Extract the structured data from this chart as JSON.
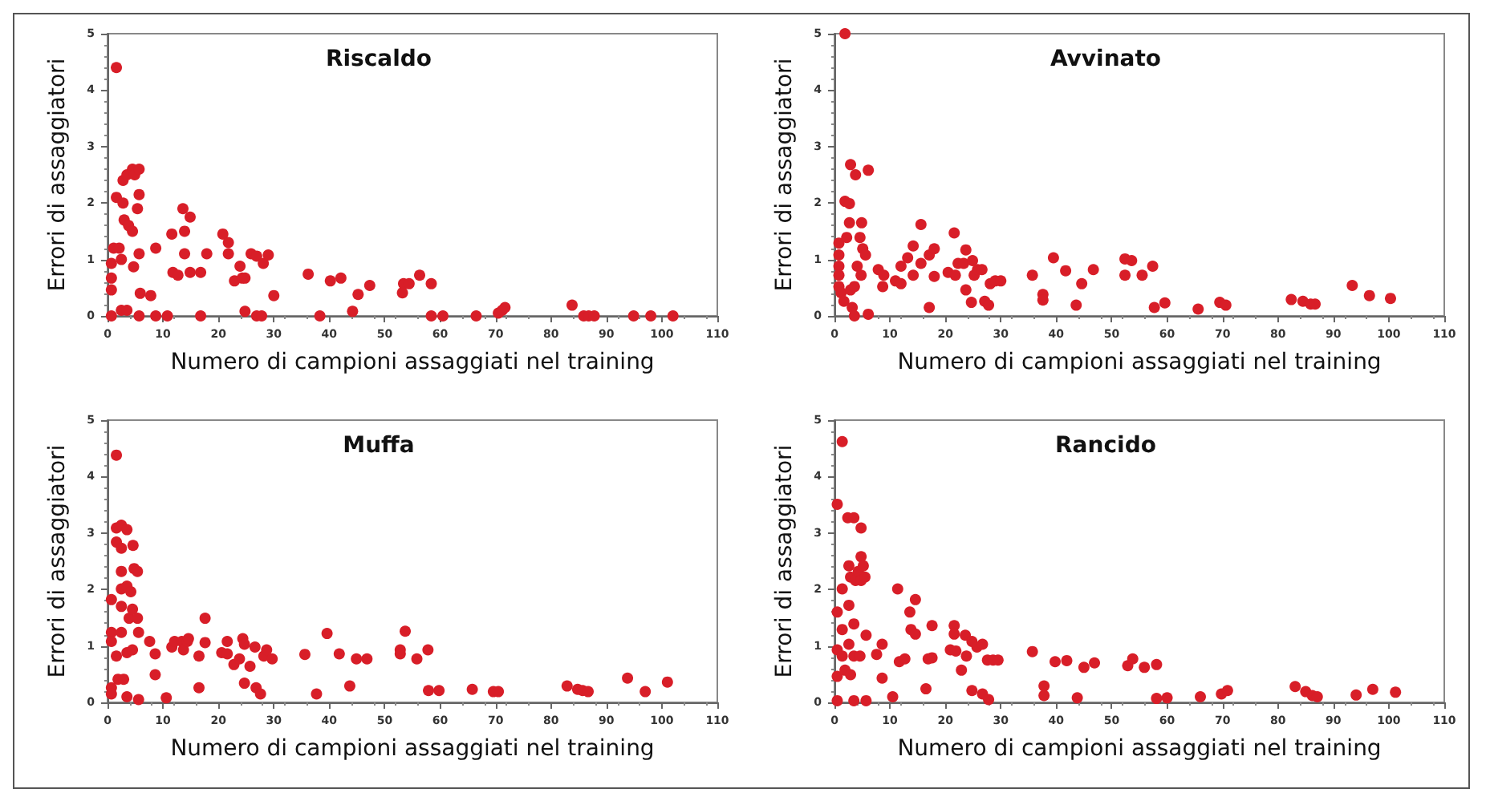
{
  "chart_data": [
    {
      "type": "scatter",
      "title": "Riscaldo",
      "xlabel": "Numero di campioni assaggiati nel training",
      "ylabel": "Errori di assaggiatori",
      "color": "#d81e28",
      "marker": "circle",
      "xlim": [
        0,
        110
      ],
      "ylim": [
        0,
        5
      ],
      "xticks": [
        0,
        10,
        20,
        30,
        40,
        50,
        60,
        70,
        80,
        90,
        100,
        110
      ],
      "yticks": [
        0,
        1,
        2,
        3,
        4,
        5
      ],
      "x": [
        1.6,
        0.7,
        0.7,
        0.7,
        0.7,
        1.1,
        1.6,
        2.1,
        2.5,
        2.5,
        2.8,
        2.8,
        3,
        3.5,
        3.5,
        3.8,
        4.5,
        4.5,
        4.7,
        4.9,
        5.4,
        5.7,
        5.7,
        5.7,
        5.7,
        5.9,
        7.8,
        8.7,
        8.7,
        10.8,
        11.6,
        11.8,
        12.7,
        13.6,
        13.9,
        13.9,
        14.9,
        14.9,
        16.8,
        16.8,
        17.9,
        20.8,
        21.8,
        21.8,
        22.9,
        23.9,
        24.3,
        24.8,
        24.8,
        25.9,
        26.9,
        26.9,
        27.8,
        28.1,
        29,
        30,
        36.2,
        38.3,
        40.2,
        42.1,
        44.2,
        45.2,
        47.3,
        53.2,
        53.4,
        54.4,
        56.3,
        58.4,
        58.4,
        60.5,
        66.5,
        70.5,
        71.2,
        71.7,
        83.8,
        85.9,
        86.8,
        87.8,
        94.9,
        98,
        102
      ],
      "values": [
        4.4,
        0,
        0.93,
        0.46,
        0.67,
        1.2,
        2.1,
        1.2,
        1,
        0.1,
        2.4,
        2,
        1.7,
        2.5,
        0.1,
        1.6,
        2.6,
        1.5,
        0.87,
        2.5,
        1.9,
        2.6,
        2.15,
        1.1,
        0,
        0.4,
        0.36,
        1.2,
        0,
        0,
        1.45,
        0.77,
        0.72,
        1.9,
        1.5,
        1.1,
        1.75,
        0.77,
        0.77,
        0,
        1.1,
        1.45,
        1.3,
        1.1,
        0.62,
        0.88,
        0.67,
        0.67,
        0.08,
        1.1,
        1.06,
        0,
        0,
        0.93,
        1.08,
        0.36,
        0.74,
        0,
        0.62,
        0.67,
        0.08,
        0.38,
        0.54,
        0.41,
        0.57,
        0.57,
        0.72,
        0.57,
        0,
        0,
        0,
        0.05,
        0.1,
        0.15,
        0.19,
        0,
        0,
        0,
        0,
        0,
        0
      ]
    },
    {
      "type": "scatter",
      "title": "Avvinato",
      "xlabel": "Numero di campioni assaggiati nel training",
      "ylabel": "Errori di assaggiatori",
      "color": "#d81e28",
      "marker": "circle",
      "xlim": [
        0,
        110
      ],
      "ylim": [
        0,
        5
      ],
      "xticks": [
        0,
        10,
        20,
        30,
        40,
        50,
        60,
        70,
        80,
        90,
        100,
        110
      ],
      "yticks": [
        0,
        1,
        2,
        3,
        4,
        5
      ],
      "x": [
        1.9,
        1.9,
        2.7,
        2.9,
        3.8,
        0.8,
        0.8,
        0.8,
        0.8,
        0.8,
        1.2,
        1.7,
        2.2,
        2.7,
        2.9,
        3.2,
        3.6,
        3.6,
        4.1,
        4.6,
        4.8,
        4.9,
        5.1,
        5.6,
        6.1,
        6.1,
        7.9,
        8.7,
        8.9,
        11,
        12,
        12,
        13.2,
        14.2,
        14.2,
        15.6,
        15.6,
        17.1,
        17.1,
        18,
        18,
        20.5,
        21.6,
        21.8,
        22.3,
        23.3,
        23.7,
        23.7,
        24.7,
        24.9,
        25.2,
        25.8,
        26.6,
        27.1,
        27.8,
        28.1,
        29,
        30,
        35.7,
        37.6,
        37.6,
        39.5,
        41.7,
        43.6,
        44.6,
        46.7,
        52.4,
        52.4,
        53.6,
        55.5,
        57.4,
        57.7,
        59.6,
        65.6,
        69.5,
        70.6,
        82.4,
        84.5,
        85.9,
        86.7,
        93.4,
        96.5,
        100.3
      ],
      "values": [
        5,
        2.03,
        1.99,
        2.68,
        2.5,
        1.29,
        1.08,
        0.88,
        0.72,
        0.52,
        0.41,
        0.26,
        1.39,
        1.65,
        0.46,
        0.15,
        0,
        0.52,
        0.88,
        1.39,
        0.72,
        1.65,
        1.19,
        1.08,
        2.58,
        0.03,
        0.82,
        0.52,
        0.72,
        0.62,
        0.57,
        0.88,
        1.03,
        1.24,
        0.72,
        1.62,
        0.93,
        0.15,
        1.08,
        1.19,
        0.7,
        0.77,
        1.47,
        0.72,
        0.93,
        0.93,
        1.17,
        0.46,
        0.24,
        0.98,
        0.72,
        0.82,
        0.82,
        0.26,
        0.19,
        0.57,
        0.62,
        0.62,
        0.72,
        0.38,
        0.28,
        1.03,
        0.8,
        0.19,
        0.57,
        0.82,
        1.01,
        0.72,
        0.98,
        0.72,
        0.88,
        0.15,
        0.23,
        0.12,
        0.24,
        0.19,
        0.29,
        0.26,
        0.21,
        0.21,
        0.54,
        0.36,
        0.31
      ]
    },
    {
      "type": "scatter",
      "title": "Muffa",
      "xlabel": "Numero di campioni assaggiati nel training",
      "ylabel": "Errori di assaggiatori",
      "color": "#d81e28",
      "marker": "circle",
      "xlim": [
        0,
        110
      ],
      "ylim": [
        0,
        5
      ],
      "xticks": [
        0,
        10,
        20,
        30,
        40,
        50,
        60,
        70,
        80,
        90,
        100,
        110
      ],
      "yticks": [
        0,
        1,
        2,
        3,
        4,
        5
      ],
      "x": [
        1.6,
        1.6,
        1.6,
        0.7,
        0.7,
        0.7,
        0.7,
        0.7,
        1.6,
        1.9,
        2.5,
        2.5,
        2.5,
        2.5,
        2.5,
        2.5,
        2.9,
        3.5,
        3.5,
        3.5,
        3.5,
        3.9,
        4.2,
        4.5,
        4.5,
        4.6,
        4.8,
        5.4,
        5.4,
        5.6,
        5.6,
        7.6,
        8.6,
        8.6,
        10.6,
        11.6,
        12.1,
        13.4,
        13.7,
        14.4,
        14.6,
        16.5,
        16.5,
        17.6,
        17.6,
        20.6,
        21.6,
        21.6,
        22.8,
        23.8,
        24.4,
        24.7,
        24.7,
        25.7,
        26.6,
        26.8,
        27.6,
        28.2,
        28.7,
        29.7,
        35.6,
        37.7,
        39.6,
        41.8,
        43.7,
        44.9,
        46.8,
        52.8,
        52.8,
        53.7,
        55.8,
        57.8,
        57.9,
        59.8,
        65.8,
        69.6,
        70.5,
        82.9,
        84.8,
        85.7,
        86.7,
        93.8,
        97,
        101
      ],
      "values": [
        4.38,
        3.09,
        2.84,
        1.82,
        1.24,
        1.08,
        0.26,
        0.15,
        0.82,
        0.41,
        3.14,
        2.73,
        2.32,
        2.01,
        1.7,
        1.24,
        0.41,
        3.06,
        2.06,
        0.88,
        0.1,
        1.49,
        1.96,
        1.65,
        0.93,
        2.78,
        2.37,
        2.32,
        1.49,
        1.24,
        0.05,
        1.08,
        0.86,
        0.49,
        0.08,
        0.98,
        1.08,
        1.08,
        0.93,
        1.08,
        1.13,
        0.82,
        0.26,
        1.49,
        1.06,
        0.88,
        1.08,
        0.86,
        0.67,
        0.77,
        1.13,
        1.03,
        0.34,
        0.64,
        0.98,
        0.26,
        0.15,
        0.82,
        0.93,
        0.77,
        0.85,
        0.15,
        1.22,
        0.86,
        0.29,
        0.77,
        0.77,
        0.93,
        0.86,
        1.26,
        0.77,
        0.93,
        0.21,
        0.21,
        0.23,
        0.19,
        0.19,
        0.29,
        0.23,
        0.21,
        0.19,
        0.43,
        0.19,
        0.36
      ]
    },
    {
      "type": "scatter",
      "title": "Rancido",
      "xlabel": "Numero di campioni assaggiati nel training",
      "ylabel": "Errori di assaggiatori",
      "color": "#d81e28",
      "marker": "circle",
      "xlim": [
        0,
        110
      ],
      "ylim": [
        0,
        5
      ],
      "xticks": [
        0,
        10,
        20,
        30,
        40,
        50,
        60,
        70,
        80,
        90,
        100,
        110
      ],
      "yticks": [
        0,
        1,
        2,
        3,
        4,
        5
      ],
      "x": [
        1.4,
        0.5,
        0.5,
        0.5,
        0.5,
        0.5,
        1.4,
        1.4,
        1.4,
        1.9,
        2.4,
        2.6,
        2.6,
        2.6,
        2.9,
        2.9,
        3.5,
        3.5,
        3.5,
        3.5,
        3.8,
        4.3,
        4.6,
        4.8,
        4.8,
        4.8,
        5.2,
        5.5,
        5.7,
        5.7,
        7.6,
        8.6,
        8.6,
        10.5,
        11.4,
        11.7,
        12.7,
        13.6,
        13.8,
        14.6,
        14.6,
        16.5,
        16.9,
        17.6,
        17.6,
        20.9,
        21.6,
        21.6,
        21.9,
        22.9,
        23.6,
        23.8,
        24.8,
        24.8,
        25.7,
        26.7,
        26.7,
        27.6,
        27.8,
        28.6,
        29.5,
        35.7,
        37.8,
        37.8,
        39.8,
        41.9,
        43.8,
        45,
        46.9,
        52.9,
        53.8,
        55.9,
        58.1,
        58.1,
        60,
        66,
        69.8,
        70.9,
        83.1,
        85,
        86.2,
        87.1,
        94.1,
        97.1,
        101.2
      ],
      "values": [
        4.62,
        3.51,
        1.6,
        0.93,
        0.46,
        0.03,
        0.82,
        1.29,
        2.01,
        0.57,
        3.27,
        1.72,
        1.03,
        2.42,
        2.22,
        0.49,
        3.27,
        1.39,
        0.82,
        0.03,
        2.16,
        2.32,
        0.82,
        3.09,
        2.58,
        2.16,
        2.42,
        2.22,
        1.19,
        0.03,
        0.85,
        1.03,
        0.43,
        0.1,
        2.01,
        0.72,
        0.77,
        1.6,
        1.29,
        1.21,
        1.82,
        0.24,
        0.77,
        0.79,
        1.36,
        0.93,
        1.36,
        1.21,
        0.91,
        0.57,
        1.19,
        0.82,
        1.08,
        0.21,
        0.98,
        1.03,
        0.15,
        0.75,
        0.05,
        0.75,
        0.75,
        0.9,
        0.29,
        0.12,
        0.72,
        0.74,
        0.08,
        0.62,
        0.7,
        0.65,
        0.77,
        0.62,
        0.67,
        0.07,
        0.08,
        0.1,
        0.15,
        0.21,
        0.28,
        0.19,
        0.12,
        0.1,
        0.13,
        0.23,
        0.18
      ]
    }
  ]
}
